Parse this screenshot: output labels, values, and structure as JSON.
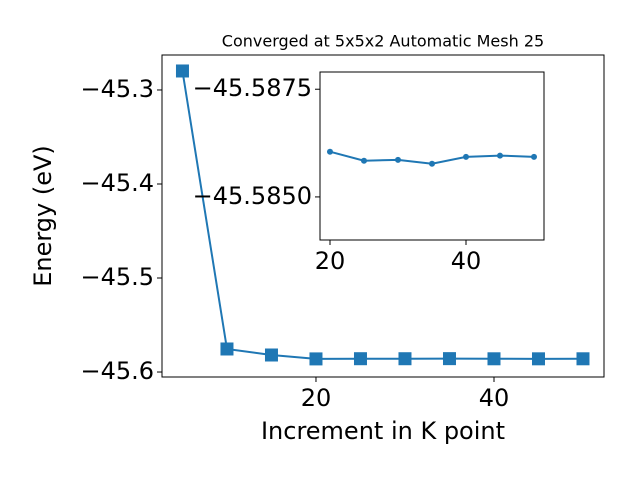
{
  "chart_data": [
    {
      "type": "line",
      "title": "Converged at 5x5x2 Automatic Mesh 25",
      "x_label": "Increment in K point",
      "y_label": "Energy (eV)",
      "x": [
        5,
        10,
        15,
        20,
        25,
        30,
        35,
        40,
        45,
        50
      ],
      "series": [
        {
          "color": "#1f77b4",
          "marker": "square",
          "values": [
            -45.2798,
            -45.5755,
            -45.5819,
            -45.58605,
            -45.58584,
            -45.58586,
            -45.58577,
            -45.58593,
            -45.58596,
            -45.58593
          ]
        }
      ],
      "xlim": [
        2.7,
        52.36
      ],
      "ylim": [
        -45.6053,
        -45.2628
      ],
      "xticks": [
        20,
        40
      ],
      "yticks": [
        {
          "value": -45.3,
          "label": "−45.3"
        },
        {
          "value": -45.4,
          "label": "−45.4"
        },
        {
          "value": -45.5,
          "label": "−45.5"
        },
        {
          "value": -45.6,
          "label": "−45.6"
        }
      ]
    },
    {
      "type": "line",
      "x": [
        20,
        25,
        30,
        35,
        40,
        45,
        50
      ],
      "series": [
        {
          "color": "#1f77b4",
          "marker": "circle",
          "values": [
            -45.58605,
            -45.58584,
            -45.58586,
            -45.58577,
            -45.58593,
            -45.58596,
            -45.58593
          ]
        }
      ],
      "xlim": [
        18.53,
        51.47
      ],
      "ylim": [
        -45.584,
        -45.5879
      ],
      "xticks": [
        20,
        40
      ],
      "yticks": [
        {
          "value": -45.5875,
          "label": "−45.5875"
        },
        {
          "value": -45.585,
          "label": "−45.5850"
        }
      ]
    }
  ]
}
